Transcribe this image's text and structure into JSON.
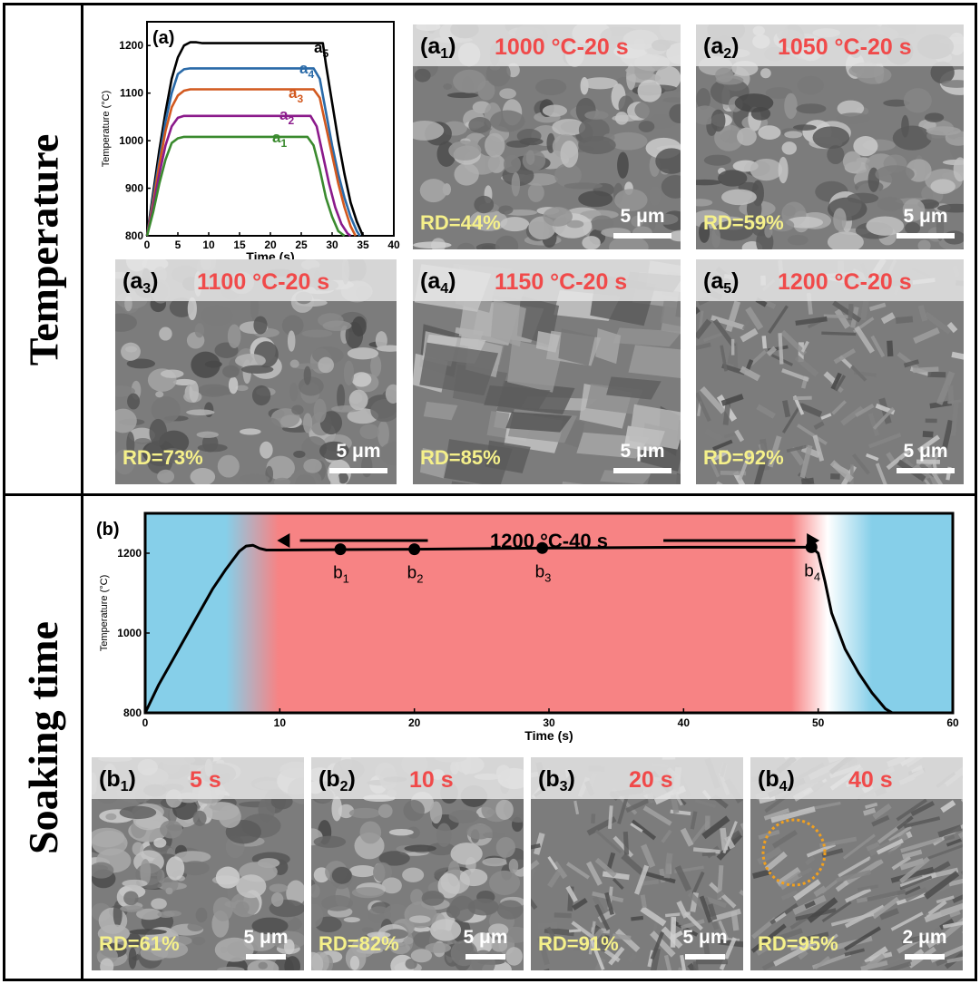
{
  "sections": {
    "top_label": "Temperature",
    "bottom_label": "Soaking time"
  },
  "colors": {
    "a1": "#3a8a2e",
    "a2": "#8b1a8b",
    "a3": "#d2591f",
    "a4": "#2a6aa8",
    "a5": "#000000",
    "header_text": "#f04a4a",
    "rd_text": "#f5f08a",
    "heat": "#f78384",
    "cool": "#86cfe9"
  },
  "panels_a": [
    {
      "label_main": "(a",
      "label_sub": "1",
      "label_end": ")",
      "condition": "1000 °C-20 s",
      "rd": "RD=44%",
      "scale": "5 μm",
      "tex": "grainy"
    },
    {
      "label_main": "(a",
      "label_sub": "2",
      "label_end": ")",
      "condition": "1050 °C-20 s",
      "rd": "RD=59%",
      "scale": "5 μm",
      "tex": "grainy"
    },
    {
      "label_main": "(a",
      "label_sub": "3",
      "label_end": ")",
      "condition": "1100 °C-20 s",
      "rd": "RD=73%",
      "scale": "5 μm",
      "tex": "mixed"
    },
    {
      "label_main": "(a",
      "label_sub": "4",
      "label_end": ")",
      "condition": "1150 °C-20 s",
      "rd": "RD=85%",
      "scale": "5 μm",
      "tex": "smooth"
    },
    {
      "label_main": "(a",
      "label_sub": "5",
      "label_end": ")",
      "condition": "1200 °C-20 s",
      "rd": "RD=92%",
      "scale": "5 μm",
      "tex": "fibrous"
    }
  ],
  "panels_b": [
    {
      "label_main": "(b",
      "label_sub": "1",
      "label_end": ")",
      "condition": "5 s",
      "rd": "RD=61%",
      "scale": "5 μm",
      "tex": "grainy"
    },
    {
      "label_main": "(b",
      "label_sub": "2",
      "label_end": ")",
      "condition": "10 s",
      "rd": "RD=82%",
      "scale": "5 μm",
      "tex": "mixed"
    },
    {
      "label_main": "(b",
      "label_sub": "3",
      "label_end": ")",
      "condition": "20 s",
      "rd": "RD=91%",
      "scale": "5 μm",
      "tex": "fibrous"
    },
    {
      "label_main": "(b",
      "label_sub": "4",
      "label_end": ")",
      "condition": "40 s",
      "rd": "RD=95%",
      "scale": "2 μm",
      "tex": "rods"
    }
  ],
  "chart_data": [
    {
      "type": "line",
      "panel_label": "(a)",
      "xlabel": "Time (s)",
      "ylabel": "Temperature (°C)",
      "xlim": [
        0,
        40
      ],
      "ylim": [
        800,
        1250
      ],
      "xticks": [
        0,
        5,
        10,
        15,
        20,
        25,
        30,
        35,
        40
      ],
      "yticks": [
        800,
        900,
        1000,
        1100,
        1200
      ],
      "series": [
        {
          "name": "a5",
          "label_main": "a",
          "label_sub": "5",
          "x": [
            0,
            1,
            2,
            3,
            4,
            5,
            6,
            7,
            8,
            9,
            10,
            15,
            20,
            25,
            28,
            28.5,
            29,
            30,
            31,
            32,
            33,
            34,
            35
          ],
          "y": [
            800,
            890,
            980,
            1060,
            1130,
            1175,
            1200,
            1207,
            1207,
            1205,
            1205,
            1205,
            1205,
            1205,
            1205,
            1205,
            1160,
            1080,
            1000,
            930,
            870,
            830,
            800
          ]
        },
        {
          "name": "a4",
          "label_main": "a",
          "label_sub": "4",
          "x": [
            0,
            1,
            2,
            3,
            4,
            5,
            6,
            7,
            8,
            10,
            15,
            20,
            25,
            27,
            28,
            29,
            30,
            31,
            32,
            33,
            34,
            34.5
          ],
          "y": [
            800,
            880,
            960,
            1040,
            1100,
            1140,
            1150,
            1152,
            1152,
            1152,
            1152,
            1152,
            1152,
            1152,
            1130,
            1060,
            990,
            930,
            880,
            840,
            810,
            800
          ]
        },
        {
          "name": "a3",
          "label_main": "a",
          "label_sub": "3",
          "x": [
            0,
            1,
            2,
            3,
            4,
            5,
            6,
            7,
            8,
            10,
            15,
            20,
            25,
            27,
            28,
            29,
            30,
            31,
            32,
            33,
            33.8
          ],
          "y": [
            800,
            870,
            950,
            1020,
            1070,
            1095,
            1105,
            1108,
            1108,
            1108,
            1108,
            1108,
            1108,
            1108,
            1090,
            1030,
            970,
            910,
            860,
            820,
            800
          ]
        },
        {
          "name": "a2",
          "label_main": "a",
          "label_sub": "2",
          "x": [
            0,
            1,
            2,
            3,
            4,
            5,
            6,
            7,
            8,
            10,
            15,
            20,
            25,
            26.5,
            27.5,
            28.5,
            29.5,
            30.5,
            31.5,
            32.5,
            33
          ],
          "y": [
            800,
            860,
            930,
            990,
            1030,
            1048,
            1052,
            1052,
            1052,
            1052,
            1052,
            1052,
            1052,
            1052,
            1030,
            970,
            910,
            860,
            825,
            805,
            800
          ]
        },
        {
          "name": "a1",
          "label_main": "a",
          "label_sub": "1",
          "x": [
            0,
            1,
            2,
            3,
            4,
            5,
            6,
            7,
            8,
            10,
            15,
            20,
            25,
            26,
            27,
            28,
            29,
            30,
            31,
            32
          ],
          "y": [
            800,
            850,
            910,
            960,
            995,
            1005,
            1008,
            1008,
            1008,
            1008,
            1008,
            1008,
            1008,
            1008,
            990,
            940,
            880,
            840,
            810,
            800
          ]
        }
      ]
    },
    {
      "type": "line",
      "panel_label": "(b)",
      "xlabel": "Time (s)",
      "ylabel": "Temperature (°C)",
      "xlim": [
        0,
        60
      ],
      "ylim": [
        800,
        1300
      ],
      "xticks": [
        0,
        10,
        20,
        30,
        40,
        50,
        60
      ],
      "yticks": [
        800,
        1000,
        1200
      ],
      "annotation": "1200 °C-40 s",
      "series": [
        {
          "name": "profile",
          "x": [
            0,
            1,
            2,
            3,
            4,
            5,
            6,
            7,
            7.5,
            8,
            8.5,
            9,
            10,
            20,
            30,
            40,
            49.5,
            50,
            50.5,
            51,
            52,
            53,
            54,
            55,
            55.5
          ],
          "y": [
            800,
            870,
            930,
            990,
            1050,
            1110,
            1160,
            1205,
            1218,
            1220,
            1212,
            1208,
            1208,
            1210,
            1213,
            1215,
            1215,
            1200,
            1130,
            1050,
            960,
            900,
            850,
            810,
            800
          ]
        }
      ],
      "points": [
        {
          "label_main": "b",
          "label_sub": "1",
          "x": 14.5,
          "y": 1210
        },
        {
          "label_main": "b",
          "label_sub": "2",
          "x": 20,
          "y": 1210
        },
        {
          "label_main": "b",
          "label_sub": "3",
          "x": 29.5,
          "y": 1213
        },
        {
          "label_main": "b",
          "label_sub": "4",
          "x": 49.5,
          "y": 1215
        }
      ]
    }
  ]
}
